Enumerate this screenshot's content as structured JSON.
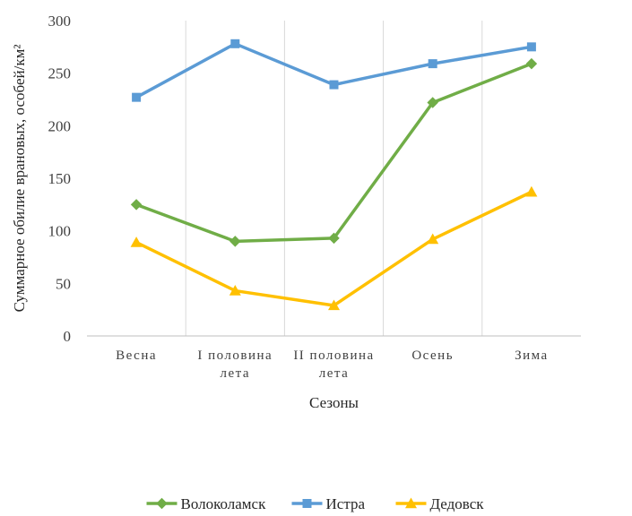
{
  "chart_data": {
    "type": "line",
    "categories": [
      [
        "Весна"
      ],
      [
        "I половина",
        "лета"
      ],
      [
        "II половина",
        "лета"
      ],
      [
        "Осень"
      ],
      [
        "Зима"
      ]
    ],
    "series": [
      {
        "name": "Волоколамск",
        "values": [
          125,
          90,
          93,
          222,
          259
        ],
        "color": "#70ad47",
        "marker": "diamond"
      },
      {
        "name": "Истра",
        "values": [
          227,
          278,
          239,
          259,
          275
        ],
        "color": "#5b9bd5",
        "marker": "square"
      },
      {
        "name": "Дедовск",
        "values": [
          89,
          43,
          29,
          92,
          137
        ],
        "color": "#ffc000",
        "marker": "triangle"
      }
    ],
    "xlabel": "Сезоны",
    "ylabel": "Суммарное обилие врановых, особей/км²",
    "ylim": [
      0,
      300
    ],
    "yticks": [
      0,
      50,
      100,
      150,
      200,
      250,
      300
    ],
    "grid": "vertical",
    "legend": "bottom"
  }
}
